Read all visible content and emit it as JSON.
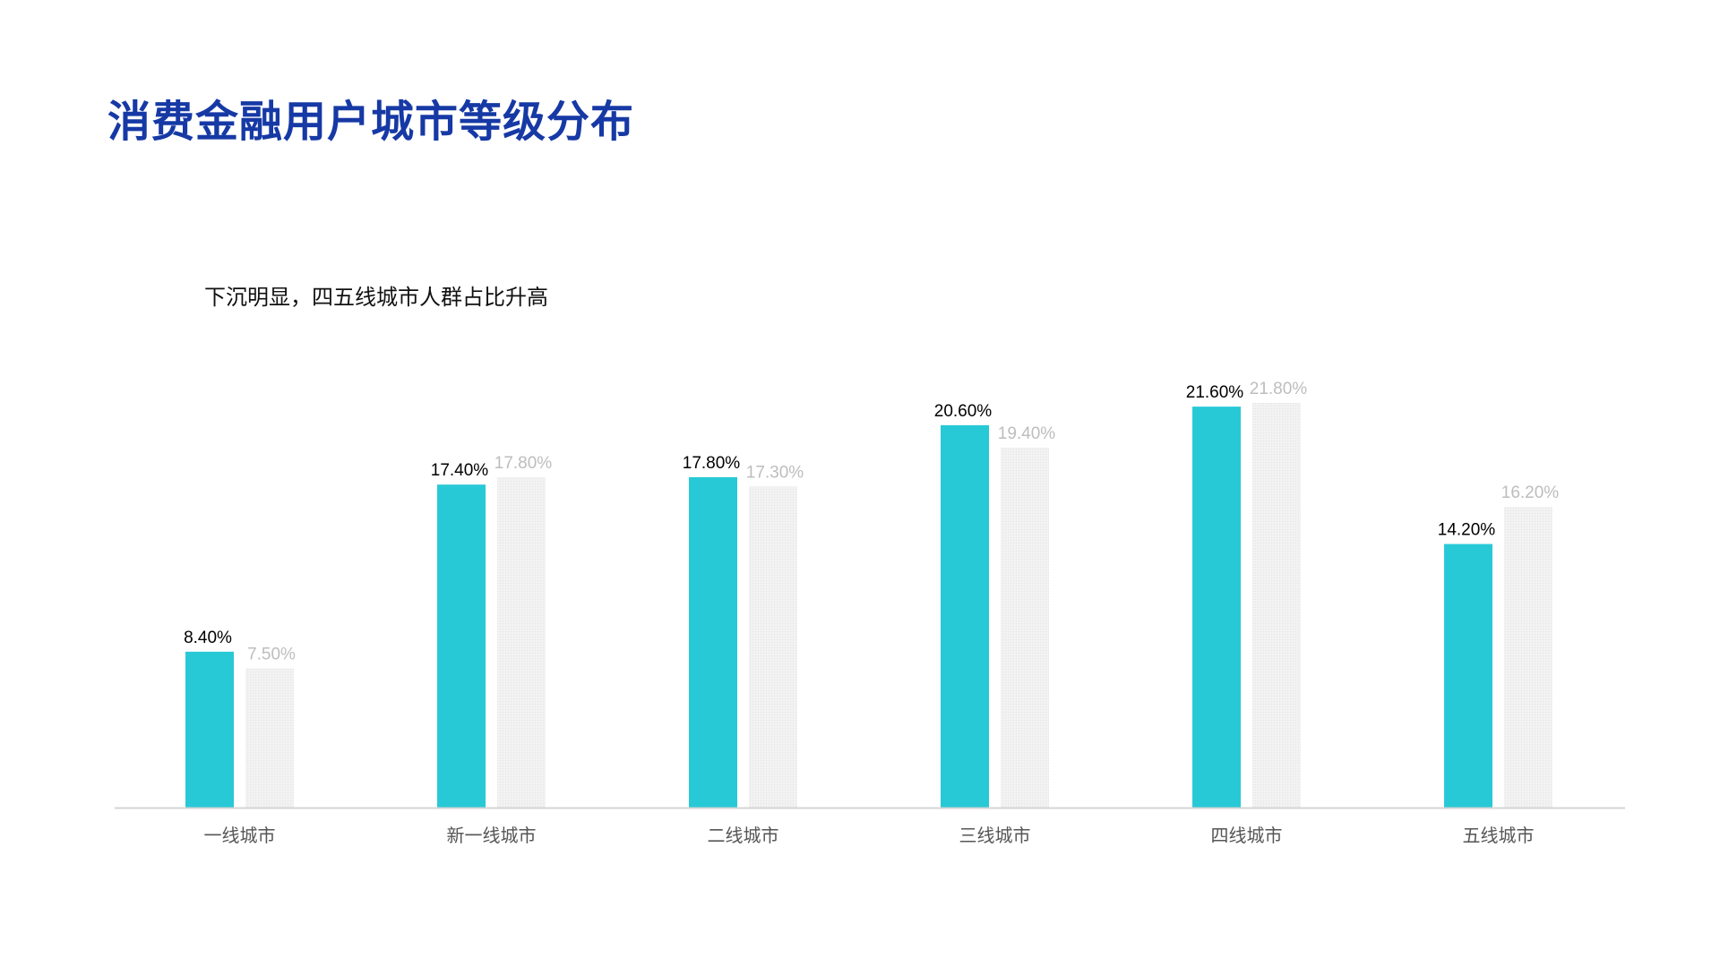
{
  "title": "消费金融用户城市等级分布",
  "subtitle": "下沉明显，四五线城市人群占比升高",
  "colors": {
    "title": "#1639a5",
    "series_primary": "#28c9d6",
    "series_secondary": "#efefef",
    "label_primary": "#000000",
    "label_secondary": "#bdbdbd",
    "axis": "#d4d4d4"
  },
  "chart_data": {
    "type": "bar",
    "categories": [
      "一线城市",
      "新一线城市",
      "二线城市",
      "三线城市",
      "四线城市",
      "五线城市"
    ],
    "series": [
      {
        "values": [
          8.4,
          17.4,
          17.8,
          20.6,
          21.6,
          14.2
        ],
        "labels": [
          "8.40%",
          "17.40%",
          "17.80%",
          "20.60%",
          "21.60%",
          "14.20%"
        ]
      },
      {
        "values": [
          7.5,
          17.8,
          17.3,
          19.4,
          21.8,
          16.2
        ],
        "labels": [
          "7.50%",
          "17.80%",
          "17.30%",
          "19.40%",
          "21.80%",
          "16.20%"
        ]
      }
    ],
    "unit": "%",
    "ylim": [
      0,
      21.8
    ],
    "grid": false,
    "legend": "none"
  }
}
